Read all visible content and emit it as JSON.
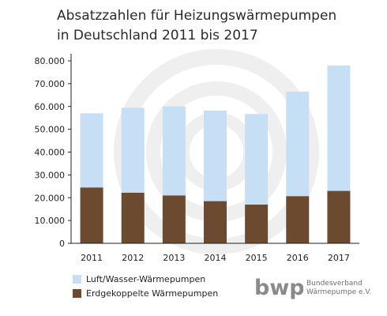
{
  "title_line1": "Absatzzahlen für Heizungswärmepumpen",
  "title_line2": "in Deutschland 2011 bis 2017",
  "colors": {
    "air_water": "#c6dff5",
    "ground": "#6b4a2f",
    "axis": "#222222",
    "watermark": "#efefef"
  },
  "chart_data": {
    "type": "bar",
    "stacked": true,
    "categories": [
      "2011",
      "2012",
      "2013",
      "2014",
      "2015",
      "2016",
      "2017"
    ],
    "series": [
      {
        "name": "Erdgekoppelte Wärmepumpen",
        "values": [
          24500,
          22200,
          21000,
          18500,
          17000,
          20700,
          23000
        ]
      },
      {
        "name": "Luft/Wasser-Wärmepumpen",
        "values": [
          32500,
          37200,
          39000,
          39700,
          39700,
          45800,
          55000
        ]
      }
    ],
    "ylim": [
      0,
      80000
    ],
    "yticks": [
      "0",
      "10.000",
      "20.000",
      "30.000",
      "40.000",
      "50.000",
      "60.000",
      "70.000",
      "80.000"
    ],
    "legend_position": "bottom-left"
  },
  "legend": {
    "air_water_label": "Luft/Wasser-Wärmepumpen",
    "ground_label": "Erdgekoppelte Wärmepumpen"
  },
  "logo": {
    "mark": "bwp",
    "line1": "Bundesverband",
    "line2": "Wärmepumpe e.V."
  }
}
